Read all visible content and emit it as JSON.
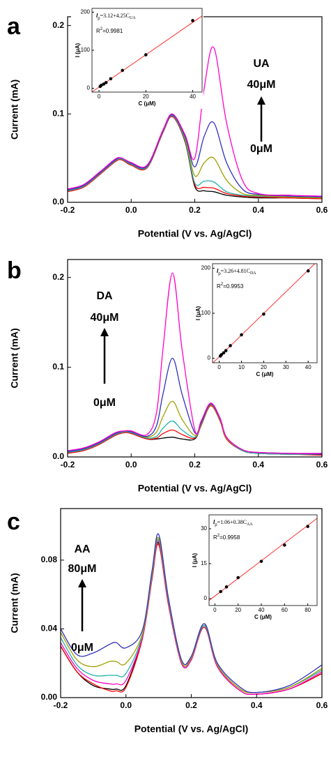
{
  "chart_data": [
    {
      "type": "line",
      "panel_label": "a",
      "xlabel": "Potential (V vs. Ag/AgCl)",
      "ylabel": "Current (mA)",
      "annotations": {
        "analyte": "UA",
        "high": "40μM",
        "low": "0μM"
      },
      "xlim": [
        -0.2,
        0.6
      ],
      "ylim": [
        0,
        0.21
      ],
      "xticks": [
        -0.2,
        {
          "value": 0,
          "label": "0.0"
        },
        0.2,
        0.4,
        0.6
      ],
      "yticks": [
        {
          "value": 0,
          "label": "0.0"
        },
        0.1,
        0.2
      ],
      "x": [
        -0.2,
        -0.15,
        -0.1,
        -0.05,
        -0.03,
        0,
        0.05,
        0.1,
        0.13,
        0.17,
        0.2,
        0.23,
        0.26,
        0.3,
        0.35,
        0.4,
        0.5,
        0.6
      ],
      "series": [
        {
          "color": "#000000",
          "values": [
            0.013,
            0.018,
            0.032,
            0.047,
            0.049,
            0.043,
            0.04,
            0.08,
            0.097,
            0.068,
            0.018,
            0.013,
            0.012,
            0.008,
            0.006,
            0.005,
            0.005,
            0.004
          ]
        },
        {
          "color": "#ff0000",
          "values": [
            0.012,
            0.017,
            0.031,
            0.046,
            0.048,
            0.042,
            0.039,
            0.079,
            0.097,
            0.069,
            0.02,
            0.017,
            0.016,
            0.01,
            0.007,
            0.006,
            0.005,
            0.004
          ]
        },
        {
          "color": "#20b2aa",
          "values": [
            0.013,
            0.018,
            0.032,
            0.047,
            0.049,
            0.043,
            0.04,
            0.08,
            0.098,
            0.07,
            0.022,
            0.024,
            0.023,
            0.012,
            0.008,
            0.007,
            0.006,
            0.005
          ]
        },
        {
          "color": "#a0a000",
          "values": [
            0.014,
            0.019,
            0.033,
            0.048,
            0.05,
            0.044,
            0.041,
            0.081,
            0.099,
            0.072,
            0.03,
            0.045,
            0.05,
            0.025,
            0.01,
            0.008,
            0.006,
            0.005
          ]
        },
        {
          "color": "#3030c0",
          "values": [
            0.014,
            0.019,
            0.033,
            0.048,
            0.05,
            0.044,
            0.041,
            0.081,
            0.099,
            0.074,
            0.04,
            0.075,
            0.09,
            0.045,
            0.015,
            0.009,
            0.007,
            0.006
          ]
        },
        {
          "color": "#ff00cc",
          "values": [
            0.015,
            0.02,
            0.034,
            0.049,
            0.05,
            0.045,
            0.042,
            0.082,
            0.1,
            0.076,
            0.05,
            0.13,
            0.175,
            0.09,
            0.025,
            0.01,
            0.008,
            0.007
          ]
        }
      ]
    },
    {
      "type": "scatter",
      "xlabel": "C (μM)",
      "ylabel": "I (μA)",
      "equation": {
        "lhs": "I",
        "lhs_sub": "p",
        "rhs": "=3.12+4.25C",
        "rhs_sub": "UA",
        "r2_lhs": "R",
        "r2_sup": "2",
        "r2_rhs": "=0.9981"
      },
      "fit": {
        "intercept": 3.12,
        "slope": 4.25
      },
      "point_color": "#000000",
      "fit_color": "#ff3030",
      "xlim": [
        -3,
        44
      ],
      "ylim": [
        -10,
        210
      ],
      "xticks": [
        0,
        20,
        40
      ],
      "yticks": [
        0,
        100,
        200
      ],
      "x": [
        0.5,
        1,
        2,
        3,
        5,
        10,
        20,
        40
      ],
      "values": [
        5,
        8,
        11,
        15,
        25,
        47,
        88,
        178
      ]
    },
    {
      "type": "line",
      "panel_label": "b",
      "xlabel": "Potential (V vs. Ag/AgCl)",
      "ylabel": "Current (mA)",
      "annotations": {
        "analyte": "DA",
        "high": "40μM",
        "low": "0μM"
      },
      "xlim": [
        -0.2,
        0.6
      ],
      "ylim": [
        0,
        0.22
      ],
      "xticks": [
        -0.2,
        {
          "value": 0,
          "label": "0.0"
        },
        0.2,
        0.4,
        0.6
      ],
      "yticks": [
        {
          "value": 0,
          "label": "0.0"
        },
        0.1,
        0.2
      ],
      "x": [
        -0.2,
        -0.15,
        -0.1,
        -0.05,
        -0.02,
        0,
        0.05,
        0.08,
        0.1,
        0.13,
        0.16,
        0.2,
        0.22,
        0.25,
        0.28,
        0.3,
        0.35,
        0.4,
        0.5,
        0.6
      ],
      "series": [
        {
          "color": "#000000",
          "values": [
            0.005,
            0.008,
            0.015,
            0.025,
            0.028,
            0.027,
            0.02,
            0.02,
            0.021,
            0.022,
            0.02,
            0.02,
            0.035,
            0.057,
            0.04,
            0.02,
            0.007,
            0.004,
            0.003,
            0.003
          ]
        },
        {
          "color": "#ff0000",
          "values": [
            0.004,
            0.007,
            0.014,
            0.024,
            0.027,
            0.026,
            0.02,
            0.021,
            0.026,
            0.03,
            0.025,
            0.021,
            0.035,
            0.057,
            0.04,
            0.02,
            0.007,
            0.004,
            0.003,
            0.002
          ]
        },
        {
          "color": "#20b2aa",
          "values": [
            0.005,
            0.008,
            0.015,
            0.025,
            0.028,
            0.027,
            0.021,
            0.023,
            0.032,
            0.04,
            0.03,
            0.022,
            0.036,
            0.058,
            0.041,
            0.021,
            0.007,
            0.004,
            0.003,
            0.003
          ]
        },
        {
          "color": "#a0a000",
          "values": [
            0.006,
            0.009,
            0.016,
            0.026,
            0.029,
            0.028,
            0.022,
            0.028,
            0.045,
            0.062,
            0.042,
            0.024,
            0.037,
            0.058,
            0.041,
            0.021,
            0.008,
            0.005,
            0.004,
            0.003
          ]
        },
        {
          "color": "#3030c0",
          "values": [
            0.006,
            0.009,
            0.016,
            0.026,
            0.029,
            0.028,
            0.023,
            0.035,
            0.07,
            0.11,
            0.07,
            0.027,
            0.038,
            0.059,
            0.042,
            0.022,
            0.008,
            0.005,
            0.004,
            0.003
          ]
        },
        {
          "color": "#ff00cc",
          "values": [
            0.007,
            0.01,
            0.017,
            0.027,
            0.029,
            0.029,
            0.025,
            0.05,
            0.12,
            0.205,
            0.12,
            0.03,
            0.04,
            0.06,
            0.043,
            0.022,
            0.008,
            0.005,
            0.004,
            0.004
          ]
        }
      ]
    },
    {
      "type": "scatter",
      "xlabel": "C (μM)",
      "ylabel": "I (μA)",
      "equation": {
        "lhs": "I",
        "lhs_sub": "p",
        "rhs": "=3.26+4.81C",
        "rhs_sub": "DA",
        "r2_lhs": "R",
        "r2_sup": "2",
        "r2_rhs": "=0.9953"
      },
      "fit": {
        "intercept": 3.26,
        "slope": 4.81
      },
      "point_color": "#000000",
      "fit_color": "#ff3030",
      "xlim": [
        -3,
        44
      ],
      "ylim": [
        -10,
        210
      ],
      "xticks": [
        0,
        10,
        20,
        30,
        40
      ],
      "yticks": [
        0,
        100,
        200
      ],
      "x": [
        0.5,
        1,
        2,
        3,
        5,
        10,
        20,
        40
      ],
      "values": [
        5,
        8,
        12,
        17,
        28,
        52,
        98,
        194
      ]
    },
    {
      "type": "line",
      "panel_label": "c",
      "xlabel": "Potential (V vs. Ag/AgCl)",
      "ylabel": "Current (mA)",
      "annotations": {
        "analyte": "AA",
        "high": "80μM",
        "low": "0μM"
      },
      "xlim": [
        -0.2,
        0.6
      ],
      "ylim": [
        0,
        0.11
      ],
      "xticks": [
        -0.2,
        {
          "value": 0,
          "label": "0.0"
        },
        0.2,
        0.4,
        0.6
      ],
      "yticks": [
        {
          "value": 0,
          "label": "0.00"
        },
        0.04,
        0.08
      ],
      "x": [
        -0.2,
        -0.15,
        -0.1,
        -0.05,
        -0.03,
        0,
        0.05,
        0.08,
        0.1,
        0.13,
        0.17,
        0.2,
        0.24,
        0.28,
        0.35,
        0.4,
        0.5,
        0.6
      ],
      "series": [
        {
          "color": "#000000",
          "values": [
            0.03,
            0.015,
            0.007,
            0.005,
            0.005,
            0.007,
            0.035,
            0.07,
            0.09,
            0.055,
            0.02,
            0.022,
            0.042,
            0.018,
            0.004,
            0.002,
            0.005,
            0.014
          ]
        },
        {
          "color": "#ff0000",
          "values": [
            0.03,
            0.015,
            0.008,
            0.004,
            0.004,
            0.006,
            0.034,
            0.069,
            0.089,
            0.054,
            0.02,
            0.022,
            0.041,
            0.018,
            0.004,
            0.002,
            0.005,
            0.014
          ]
        },
        {
          "color": "#ff00cc",
          "values": [
            0.032,
            0.017,
            0.01,
            0.008,
            0.008,
            0.01,
            0.035,
            0.07,
            0.091,
            0.055,
            0.02,
            0.022,
            0.042,
            0.018,
            0.004,
            0.002,
            0.005,
            0.015
          ]
        },
        {
          "color": "#20b2aa",
          "values": [
            0.035,
            0.019,
            0.013,
            0.013,
            0.013,
            0.014,
            0.036,
            0.071,
            0.092,
            0.056,
            0.021,
            0.023,
            0.042,
            0.019,
            0.005,
            0.003,
            0.006,
            0.016
          ]
        },
        {
          "color": "#a0a000",
          "values": [
            0.038,
            0.022,
            0.018,
            0.021,
            0.021,
            0.02,
            0.037,
            0.072,
            0.093,
            0.057,
            0.021,
            0.023,
            0.043,
            0.019,
            0.005,
            0.003,
            0.006,
            0.017
          ]
        },
        {
          "color": "#3030c0",
          "values": [
            0.04,
            0.025,
            0.026,
            0.031,
            0.032,
            0.029,
            0.039,
            0.074,
            0.095,
            0.058,
            0.022,
            0.024,
            0.043,
            0.02,
            0.006,
            0.003,
            0.007,
            0.019
          ]
        }
      ]
    },
    {
      "type": "scatter",
      "xlabel": "C (μM)",
      "ylabel": "I (μA)",
      "equation": {
        "lhs": "I",
        "lhs_sub": "p",
        "rhs": "=1.06+0.38C",
        "rhs_sub": "AA",
        "r2_lhs": "R",
        "r2_sup": "2",
        "r2_rhs": "=0.9958"
      },
      "fit": {
        "intercept": 1.06,
        "slope": 0.38
      },
      "point_color": "#000000",
      "fit_color": "#ff3030",
      "xlim": [
        -5,
        88
      ],
      "ylim": [
        -3,
        36
      ],
      "xticks": [
        0,
        20,
        40,
        60,
        80
      ],
      "yticks": [
        0,
        15,
        30
      ],
      "x": [
        5,
        10,
        20,
        40,
        60,
        80
      ],
      "values": [
        3,
        5,
        9,
        16,
        23,
        31
      ]
    }
  ]
}
